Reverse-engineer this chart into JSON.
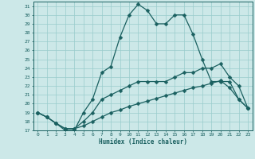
{
  "xlabel": "Humidex (Indice chaleur)",
  "bg_color": "#cce8e8",
  "grid_color": "#99cccc",
  "line_color": "#1a6060",
  "ylim": [
    17,
    31.5
  ],
  "xlim": [
    -0.5,
    23.5
  ],
  "yticks": [
    17,
    18,
    19,
    20,
    21,
    22,
    23,
    24,
    25,
    26,
    27,
    28,
    29,
    30,
    31
  ],
  "xticks": [
    0,
    1,
    2,
    3,
    4,
    5,
    6,
    7,
    8,
    9,
    10,
    11,
    12,
    13,
    14,
    15,
    16,
    17,
    18,
    19,
    20,
    21,
    22,
    23
  ],
  "line1_x": [
    0,
    1,
    2,
    3,
    4,
    5,
    6,
    7,
    8,
    9,
    10,
    11,
    12,
    13,
    14,
    15,
    16,
    17,
    18,
    19,
    20,
    21,
    22,
    23
  ],
  "line1_y": [
    19.0,
    18.5,
    17.8,
    17.0,
    17.0,
    19.0,
    20.5,
    23.5,
    24.2,
    27.5,
    30.0,
    31.2,
    30.5,
    29.0,
    29.0,
    30.0,
    30.0,
    27.8,
    25.0,
    22.5,
    22.5,
    22.5,
    20.5,
    19.5
  ],
  "line2_x": [
    0,
    1,
    2,
    3,
    4,
    5,
    6,
    7,
    8,
    9,
    10,
    11,
    12,
    13,
    14,
    15,
    16,
    17,
    18,
    19,
    20,
    21,
    22,
    23
  ],
  "line2_y": [
    19.0,
    18.5,
    17.8,
    17.2,
    17.2,
    18.0,
    19.0,
    20.5,
    21.0,
    21.5,
    22.0,
    22.5,
    22.5,
    22.5,
    22.5,
    23.0,
    23.5,
    23.5,
    24.0,
    24.0,
    24.5,
    23.0,
    22.0,
    19.5
  ],
  "line3_x": [
    0,
    1,
    2,
    3,
    4,
    5,
    6,
    7,
    8,
    9,
    10,
    11,
    12,
    13,
    14,
    15,
    16,
    17,
    18,
    19,
    20,
    21,
    22,
    23
  ],
  "line3_y": [
    19.0,
    18.5,
    17.8,
    17.2,
    17.2,
    17.5,
    18.0,
    18.5,
    19.0,
    19.3,
    19.7,
    20.0,
    20.3,
    20.6,
    20.9,
    21.2,
    21.5,
    21.8,
    22.0,
    22.3,
    22.6,
    21.8,
    20.5,
    19.5
  ]
}
